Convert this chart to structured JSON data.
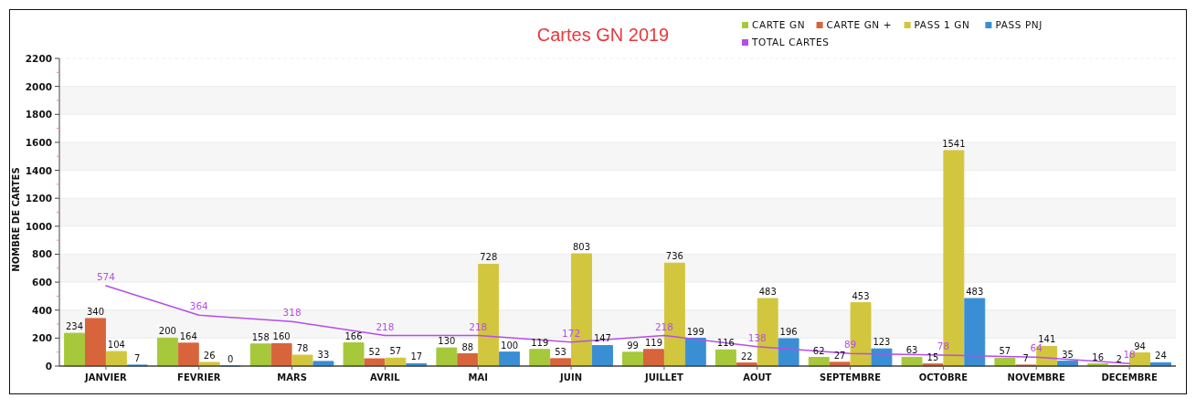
{
  "chart_data": {
    "type": "bar",
    "title": "Cartes GN 2019",
    "ylabel": "NOMBRE DE CARTES",
    "categories": [
      "JANVIER",
      "FEVRIER",
      "MARS",
      "AVRIL",
      "MAI",
      "JUIN",
      "JUILLET",
      "AOUT",
      "SEPTEMBRE",
      "OCTOBRE",
      "NOVEMBRE",
      "DECEMBRE"
    ],
    "series": [
      {
        "name": "CARTE GN",
        "color": "#a6c83a",
        "values": [
          234,
          200,
          158,
          166,
          130,
          119,
          99,
          116,
          62,
          63,
          57,
          16
        ]
      },
      {
        "name": "CARTE GN +",
        "color": "#d8643c",
        "values": [
          340,
          164,
          160,
          52,
          88,
          53,
          119,
          22,
          27,
          15,
          7,
          2
        ]
      },
      {
        "name": "PASS 1 GN",
        "color": "#d2c63e",
        "values": [
          104,
          26,
          78,
          57,
          728,
          803,
          736,
          483,
          453,
          1541,
          141,
          94
        ]
      },
      {
        "name": "PASS PNJ",
        "color": "#3a8ed4",
        "values": [
          7,
          0,
          33,
          17,
          100,
          147,
          199,
          196,
          123,
          483,
          35,
          24
        ]
      },
      {
        "name": "TOTAL CARTES",
        "type": "line",
        "color": "#b44ee8",
        "values": [
          574,
          364,
          318,
          218,
          218,
          172,
          218,
          138,
          89,
          78,
          64,
          18
        ]
      }
    ],
    "ylim": [
      0,
      2200
    ],
    "yticks": [
      0,
      {
        "value": 100,
        "label": null
      },
      200,
      {
        "value": 300,
        "label": null
      },
      400,
      {
        "value": 500,
        "label": null
      },
      600,
      {
        "value": 700,
        "label": null
      },
      800,
      {
        "value": 900,
        "label": null
      },
      1000,
      {
        "value": 1100,
        "label": null
      },
      1200,
      {
        "value": 1300,
        "label": null
      },
      1400,
      {
        "value": 1500,
        "label": null
      },
      1600,
      {
        "value": 1700,
        "label": null
      },
      1800,
      {
        "value": 1900,
        "label": null
      },
      2000,
      {
        "value": 2100,
        "label": null
      },
      2200
    ],
    "grid": "y",
    "legend": "top right",
    "data_labels": true
  }
}
